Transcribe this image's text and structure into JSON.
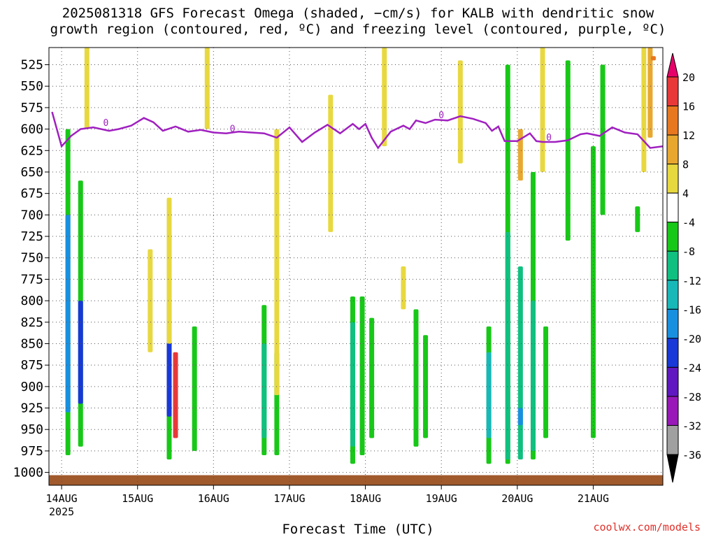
{
  "title": {
    "line1": "2025081318 GFS Forecast Omega (shaded, −cm/s) for KALB with dendritic snow",
    "line2": "growth region (contoured, red, ºC) and freezing level (contoured, purple, ºC)"
  },
  "credit": "coolwx.com/models",
  "chart_data": {
    "type": "heatmap",
    "xlabel": "Forecast Time (UTC)",
    "x_ticks": [
      "14AUG",
      "15AUG",
      "16AUG",
      "17AUG",
      "18AUG",
      "19AUG",
      "20AUG",
      "21AUG"
    ],
    "x_year": "2025",
    "x_range_hours": [
      -4,
      190
    ],
    "y_ticks": [
      525,
      550,
      575,
      600,
      625,
      650,
      675,
      700,
      725,
      750,
      775,
      800,
      825,
      850,
      875,
      900,
      925,
      950,
      975,
      1000
    ],
    "y_range_hpa": [
      505,
      1015
    ],
    "grid": true,
    "colorbar": {
      "labels": [
        20,
        16,
        12,
        8,
        4,
        -4,
        -8,
        -12,
        -16,
        -20,
        -24,
        -28,
        -32,
        -36
      ],
      "colors": [
        "#e8006a",
        "#e83838",
        "#e87820",
        "#e8a830",
        "#e8d840",
        "#ffffff",
        "#18c818",
        "#10c080",
        "#18b8b8",
        "#1890e0",
        "#1838d8",
        "#6018c0",
        "#9818b8",
        "#a0a0a0",
        "#000000"
      ]
    },
    "omega_bands": [
      {
        "t": 2,
        "color": "#18c818",
        "top": 600,
        "bottom": 980
      },
      {
        "t": 2,
        "color": "#1890e0",
        "top": 700,
        "bottom": 930
      },
      {
        "t": 6,
        "color": "#18c818",
        "top": 660,
        "bottom": 970
      },
      {
        "t": 6,
        "color": "#1838d8",
        "top": 800,
        "bottom": 920
      },
      {
        "t": 34,
        "color": "#18c818",
        "top": 720,
        "bottom": 985
      },
      {
        "t": 34,
        "color": "#1838d8",
        "top": 800,
        "bottom": 935
      },
      {
        "t": 36,
        "color": "#e83838",
        "top": 860,
        "bottom": 960
      },
      {
        "t": 42,
        "color": "#18c818",
        "top": 830,
        "bottom": 975
      },
      {
        "t": 64,
        "color": "#18c818",
        "top": 805,
        "bottom": 980
      },
      {
        "t": 64,
        "color": "#10c080",
        "top": 850,
        "bottom": 960
      },
      {
        "t": 68,
        "color": "#18c818",
        "top": 860,
        "bottom": 980
      },
      {
        "t": 92,
        "color": "#18c818",
        "top": 795,
        "bottom": 990
      },
      {
        "t": 92,
        "color": "#10c080",
        "top": 825,
        "bottom": 970
      },
      {
        "t": 95,
        "color": "#18c818",
        "top": 795,
        "bottom": 980
      },
      {
        "t": 98,
        "color": "#18c818",
        "top": 820,
        "bottom": 960
      },
      {
        "t": 112,
        "color": "#18c818",
        "top": 810,
        "bottom": 970
      },
      {
        "t": 115,
        "color": "#18c818",
        "top": 840,
        "bottom": 960
      },
      {
        "t": 135,
        "color": "#18c818",
        "top": 830,
        "bottom": 990
      },
      {
        "t": 135,
        "color": "#18b8b8",
        "top": 860,
        "bottom": 960
      },
      {
        "t": 141,
        "color": "#18c818",
        "top": 525,
        "bottom": 990
      },
      {
        "t": 141,
        "color": "#10c080",
        "top": 720,
        "bottom": 985
      },
      {
        "t": 145,
        "color": "#10c080",
        "top": 760,
        "bottom": 985
      },
      {
        "t": 145,
        "color": "#1890e0",
        "top": 925,
        "bottom": 945
      },
      {
        "t": 149,
        "color": "#18c818",
        "top": 650,
        "bottom": 985
      },
      {
        "t": 149,
        "color": "#10c080",
        "top": 800,
        "bottom": 975
      },
      {
        "t": 153,
        "color": "#18c818",
        "top": 830,
        "bottom": 960
      },
      {
        "t": 160,
        "color": "#18c818",
        "top": 520,
        "bottom": 730
      },
      {
        "t": 168,
        "color": "#18c818",
        "top": 620,
        "bottom": 960
      },
      {
        "t": 171,
        "color": "#18c818",
        "top": 525,
        "bottom": 700
      },
      {
        "t": 182,
        "color": "#18c818",
        "top": 690,
        "bottom": 720
      },
      {
        "t": 8,
        "color": "#e8d840",
        "top": 505,
        "bottom": 600
      },
      {
        "t": 28,
        "color": "#e8d840",
        "top": 740,
        "bottom": 860
      },
      {
        "t": 34,
        "color": "#e8d840",
        "top": 680,
        "bottom": 850
      },
      {
        "t": 46,
        "color": "#e8d840",
        "top": 505,
        "bottom": 600
      },
      {
        "t": 68,
        "color": "#e8d840",
        "top": 600,
        "bottom": 910
      },
      {
        "t": 85,
        "color": "#e8d840",
        "top": 560,
        "bottom": 720
      },
      {
        "t": 102,
        "color": "#e8d840",
        "top": 505,
        "bottom": 620
      },
      {
        "t": 108,
        "color": "#e8d840",
        "top": 760,
        "bottom": 810
      },
      {
        "t": 126,
        "color": "#e8d840",
        "top": 520,
        "bottom": 640
      },
      {
        "t": 152,
        "color": "#e8d840",
        "top": 505,
        "bottom": 650
      },
      {
        "t": 145,
        "color": "#e8a830",
        "top": 600,
        "bottom": 660
      },
      {
        "t": 184,
        "color": "#e8d840",
        "top": 505,
        "bottom": 650
      },
      {
        "t": 186,
        "color": "#e8a830",
        "top": 505,
        "bottom": 610
      },
      {
        "t": 187,
        "color": "#e87820",
        "top": 515,
        "bottom": 520
      }
    ],
    "freezing_level": {
      "label": "0",
      "color": "#a020c0",
      "t": [
        -3,
        0,
        3,
        6,
        10,
        15,
        18,
        22,
        26,
        29,
        32,
        36,
        40,
        44,
        48,
        52,
        56,
        60,
        64,
        68,
        72,
        76,
        80,
        84,
        88,
        92,
        94,
        96,
        98,
        100,
        104,
        108,
        110,
        112,
        115,
        118,
        122,
        126,
        130,
        134,
        136,
        138,
        140,
        144,
        148,
        150,
        152,
        156,
        160,
        164,
        166,
        170,
        174,
        178,
        182,
        186,
        190
      ],
      "hpa": [
        580,
        620,
        608,
        600,
        598,
        602,
        600,
        596,
        587,
        592,
        602,
        597,
        603,
        601,
        604,
        605,
        603,
        604,
        605,
        610,
        598,
        615,
        604,
        595,
        605,
        594,
        600,
        594,
        610,
        622,
        603,
        596,
        600,
        590,
        593,
        589,
        590,
        585,
        588,
        593,
        602,
        597,
        614,
        614,
        605,
        614,
        615,
        615,
        613,
        606,
        605,
        608,
        598,
        604,
        606,
        622,
        620
      ]
    },
    "surface_terrain_color": "#a05a2c"
  }
}
